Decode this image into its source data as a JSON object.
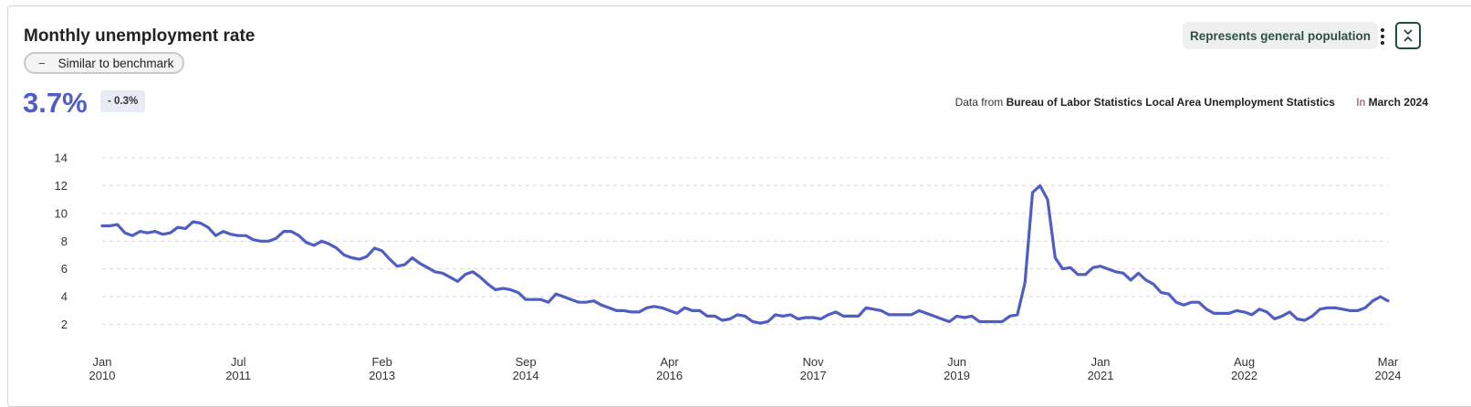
{
  "header": {
    "title": "Monthly unemployment rate",
    "benchmark_label": "Similar to benchmark",
    "benchmark_icon": "minus-icon",
    "population_badge": "Represents general population",
    "value": "3.7%",
    "delta": "- 0.3%",
    "source_prefix": "Data from",
    "source_name": "Bureau of Labor Statistics Local Area Unemployment Statistics",
    "period_prefix": "In",
    "period": "March 2024"
  },
  "colors": {
    "line": "#4f5ec4",
    "accent": "#1f4d3f",
    "grid": "#d9d9d9"
  },
  "chart_data": {
    "type": "line",
    "title": "Monthly unemployment rate",
    "xlabel": "",
    "ylabel": "",
    "ylim": [
      0,
      14
    ],
    "yticks": [
      2,
      4,
      6,
      8,
      10,
      12,
      14
    ],
    "grid": true,
    "x_start": "2010-01",
    "x_end": "2024-03",
    "xticks": [
      {
        "month": "2010-01",
        "line1": "Jan",
        "line2": "2010"
      },
      {
        "month": "2011-07",
        "line1": "Jul",
        "line2": "2011"
      },
      {
        "month": "2013-02",
        "line1": "Feb",
        "line2": "2013"
      },
      {
        "month": "2014-09",
        "line1": "Sep",
        "line2": "2014"
      },
      {
        "month": "2016-04",
        "line1": "Apr",
        "line2": "2016"
      },
      {
        "month": "2017-11",
        "line1": "Nov",
        "line2": "2017"
      },
      {
        "month": "2019-06",
        "line1": "Jun",
        "line2": "2019"
      },
      {
        "month": "2021-01",
        "line1": "Jan",
        "line2": "2021"
      },
      {
        "month": "2022-08",
        "line1": "Aug",
        "line2": "2022"
      },
      {
        "month": "2024-03",
        "line1": "Mar",
        "line2": "2024"
      }
    ],
    "series": [
      {
        "values": [
          9.1,
          9.1,
          9.2,
          8.6,
          8.4,
          8.7,
          8.6,
          8.7,
          8.5,
          8.6,
          9.0,
          8.9,
          9.4,
          9.3,
          9.0,
          8.4,
          8.7,
          8.5,
          8.4,
          8.4,
          8.1,
          8.0,
          8.0,
          8.2,
          8.7,
          8.7,
          8.4,
          7.9,
          7.7,
          8.0,
          7.8,
          7.5,
          7.0,
          6.8,
          6.7,
          6.9,
          7.5,
          7.3,
          6.7,
          6.2,
          6.3,
          6.8,
          6.4,
          6.1,
          5.8,
          5.7,
          5.4,
          5.1,
          5.6,
          5.8,
          5.4,
          4.9,
          4.5,
          4.6,
          4.5,
          4.3,
          3.8,
          3.8,
          3.8,
          3.6,
          4.2,
          4.0,
          3.8,
          3.6,
          3.6,
          3.7,
          3.4,
          3.2,
          3.0,
          3.0,
          2.9,
          2.9,
          3.2,
          3.3,
          3.2,
          3.0,
          2.8,
          3.2,
          3.0,
          3.0,
          2.6,
          2.6,
          2.3,
          2.4,
          2.7,
          2.6,
          2.2,
          2.1,
          2.2,
          2.7,
          2.6,
          2.7,
          2.4,
          2.5,
          2.5,
          2.4,
          2.7,
          2.9,
          2.6,
          2.6,
          2.6,
          3.2,
          3.1,
          3.0,
          2.7,
          2.7,
          2.7,
          2.7,
          3.0,
          2.8,
          2.6,
          2.4,
          2.2,
          2.6,
          2.5,
          2.6,
          2.2,
          2.2,
          2.2,
          2.2,
          2.6,
          2.7,
          5.0,
          11.5,
          12.0,
          11.0,
          6.8,
          6.0,
          6.1,
          5.6,
          5.6,
          6.1,
          6.2,
          6.0,
          5.8,
          5.7,
          5.2,
          5.7,
          5.2,
          4.9,
          4.3,
          4.2,
          3.6,
          3.4,
          3.6,
          3.6,
          3.1,
          2.8,
          2.8,
          2.8,
          3.0,
          2.9,
          2.7,
          3.1,
          2.9,
          2.4,
          2.6,
          2.9,
          2.4,
          2.3,
          2.6,
          3.1,
          3.2,
          3.2,
          3.1,
          3.0,
          3.0,
          3.2,
          3.7,
          4.0,
          3.7
        ]
      }
    ]
  }
}
